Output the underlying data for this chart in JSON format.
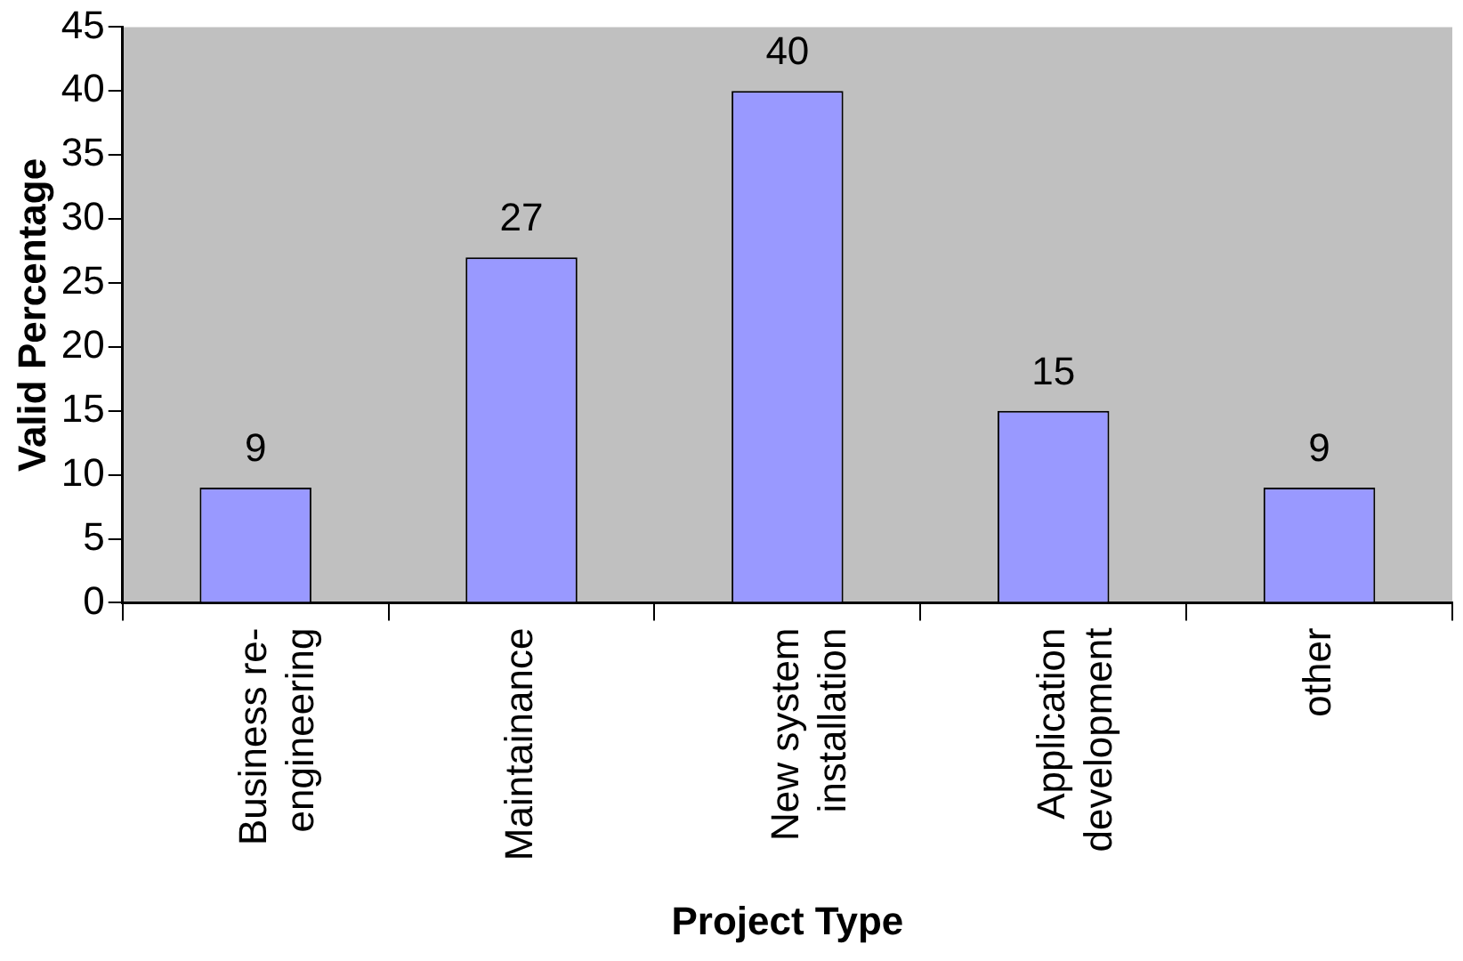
{
  "chart_data": {
    "type": "bar",
    "xlabel": "Project Type",
    "ylabel": "Valid Percentage",
    "categories": [
      "Business re-engineering",
      "Maintainance",
      "New system installation",
      "Application development",
      "other"
    ],
    "values": [
      9,
      27,
      40,
      15,
      9
    ],
    "color": "#9999ff",
    "ylim": [
      0,
      45
    ],
    "yticks": [
      0,
      5,
      10,
      15,
      20,
      25,
      30,
      35,
      40,
      45
    ],
    "grid": false,
    "legend": false,
    "data_labels": true
  }
}
